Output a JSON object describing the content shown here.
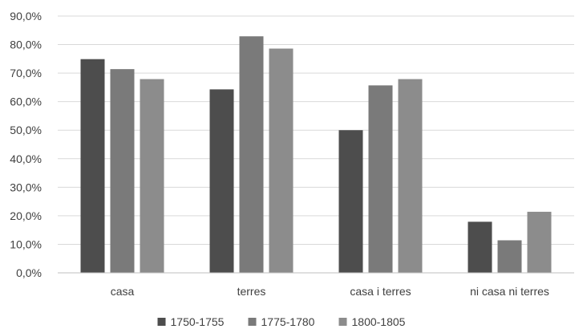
{
  "chart_data": {
    "type": "bar",
    "categories": [
      "casa",
      "terres",
      "casa i terres",
      "ni casa ni terres"
    ],
    "series": [
      {
        "name": "1750-1755",
        "color": "#4d4d4d",
        "values": [
          74.9,
          64.3,
          50.0,
          17.9
        ]
      },
      {
        "name": "1775-1780",
        "color": "#7a7a7a",
        "values": [
          71.4,
          82.9,
          65.7,
          11.4
        ]
      },
      {
        "name": "1800-1805",
        "color": "#8c8c8c",
        "values": [
          67.9,
          78.6,
          67.9,
          21.4
        ]
      }
    ],
    "y_ticks": [
      "0,0%",
      "10,0%",
      "20,0%",
      "30,0%",
      "40,0%",
      "50,0%",
      "60,0%",
      "70,0%",
      "80,0%",
      "90,0%"
    ],
    "ylim": [
      0,
      90
    ],
    "grid": true,
    "legend_position": "bottom"
  }
}
